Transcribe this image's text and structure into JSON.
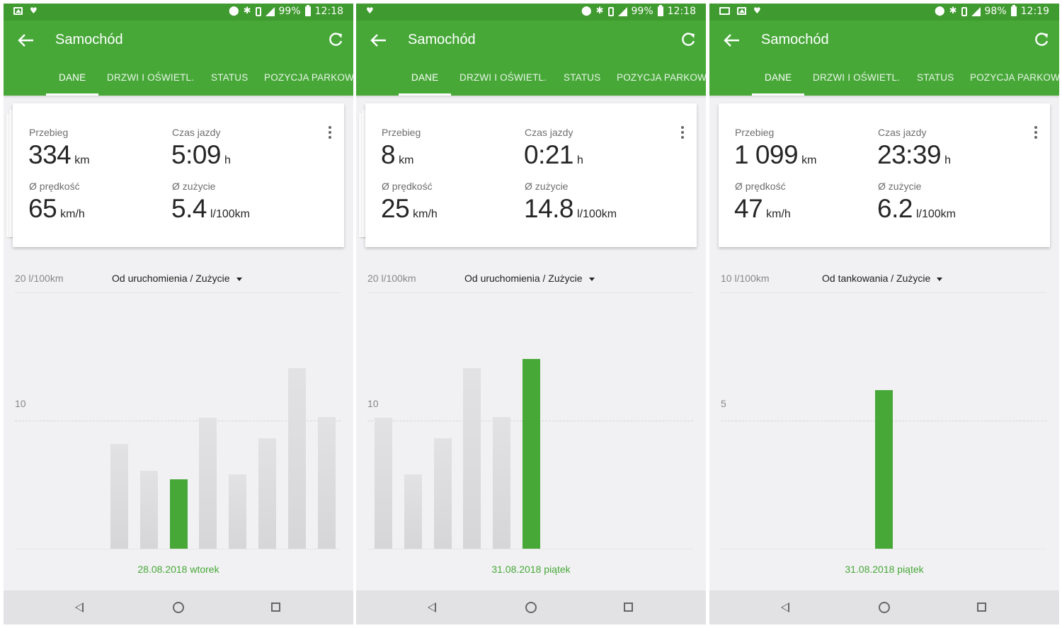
{
  "screens": [
    {
      "status": {
        "battery": "99%",
        "time": "12:18",
        "left_icons": [
          "image-icon",
          "heart-icon"
        ]
      },
      "appbar": {
        "title": "Samochód"
      },
      "tabs": [
        "DANE",
        "DRZWI I OŚWIETL.",
        "STATUS",
        "POZYCJA PARKOW"
      ],
      "active_tab": 0,
      "stats": {
        "mileage_label": "Przebieg",
        "mileage_value": "334",
        "mileage_unit": "km",
        "time_label": "Czas jazdy",
        "time_value": "5:09",
        "time_unit": "h",
        "speed_label": "Ø prędkość",
        "speed_value": "65",
        "speed_unit": "km/h",
        "consumption_label": "Ø zużycie",
        "consumption_value": "5.4",
        "consumption_unit": "l/100km"
      },
      "chart_header": {
        "y_top": "20 l/100km",
        "range": "Od uruchomienia / Zużycie"
      },
      "chart_data": {
        "type": "bar",
        "y_max": 20,
        "mid_tick": "10",
        "mid_tick_value": 10,
        "values": [
          8.2,
          6.1,
          5.4,
          10.2,
          5.8,
          8.6,
          14.1,
          10.3
        ],
        "active_index": 2,
        "selected_date": "28.08.2018 wtorek"
      }
    },
    {
      "status": {
        "battery": "99%",
        "time": "12:18",
        "left_icons": [
          "heart-icon"
        ]
      },
      "appbar": {
        "title": "Samochód"
      },
      "tabs": [
        "DANE",
        "DRZWI I OŚWIETL.",
        "STATUS",
        "POZYCJA PARKOW"
      ],
      "active_tab": 0,
      "stats": {
        "mileage_label": "Przebieg",
        "mileage_value": "8",
        "mileage_unit": "km",
        "time_label": "Czas jazdy",
        "time_value": "0:21",
        "time_unit": "h",
        "speed_label": "Ø prędkość",
        "speed_value": "25",
        "speed_unit": "km/h",
        "consumption_label": "Ø zużycie",
        "consumption_value": "14.8",
        "consumption_unit": "l/100km"
      },
      "chart_header": {
        "y_top": "20 l/100km",
        "range": "Od uruchomienia / Zużycie"
      },
      "chart_data": {
        "type": "bar",
        "y_max": 20,
        "mid_tick": "10",
        "mid_tick_value": 10,
        "values": [
          10.2,
          5.8,
          8.6,
          14.1,
          10.3,
          14.8
        ],
        "active_index": 5,
        "selected_date": "31.08.2018 piątek"
      }
    },
    {
      "status": {
        "battery": "98%",
        "time": "12:19",
        "left_icons": [
          "cast-icon",
          "image-icon",
          "heart-icon"
        ]
      },
      "appbar": {
        "title": "Samochód"
      },
      "tabs": [
        "DANE",
        "DRZWI I OŚWIETL.",
        "STATUS",
        "POZYCJA PARKOW"
      ],
      "active_tab": 0,
      "stats": {
        "mileage_label": "Przebieg",
        "mileage_value": "1 099",
        "mileage_unit": "km",
        "time_label": "Czas jazdy",
        "time_value": "23:39",
        "time_unit": "h",
        "speed_label": "Ø prędkość",
        "speed_value": "47",
        "speed_unit": "km/h",
        "consumption_label": "Ø zużycie",
        "consumption_value": "6.2",
        "consumption_unit": "l/100km"
      },
      "chart_header": {
        "y_top": "10 l/100km",
        "range": "Od tankowania / Zużycie"
      },
      "chart_data": {
        "type": "bar",
        "y_max": 10,
        "mid_tick": "5",
        "mid_tick_value": 5,
        "values": [
          6.2
        ],
        "active_index": 0,
        "selected_date": "31.08.2018 piątek"
      }
    }
  ]
}
